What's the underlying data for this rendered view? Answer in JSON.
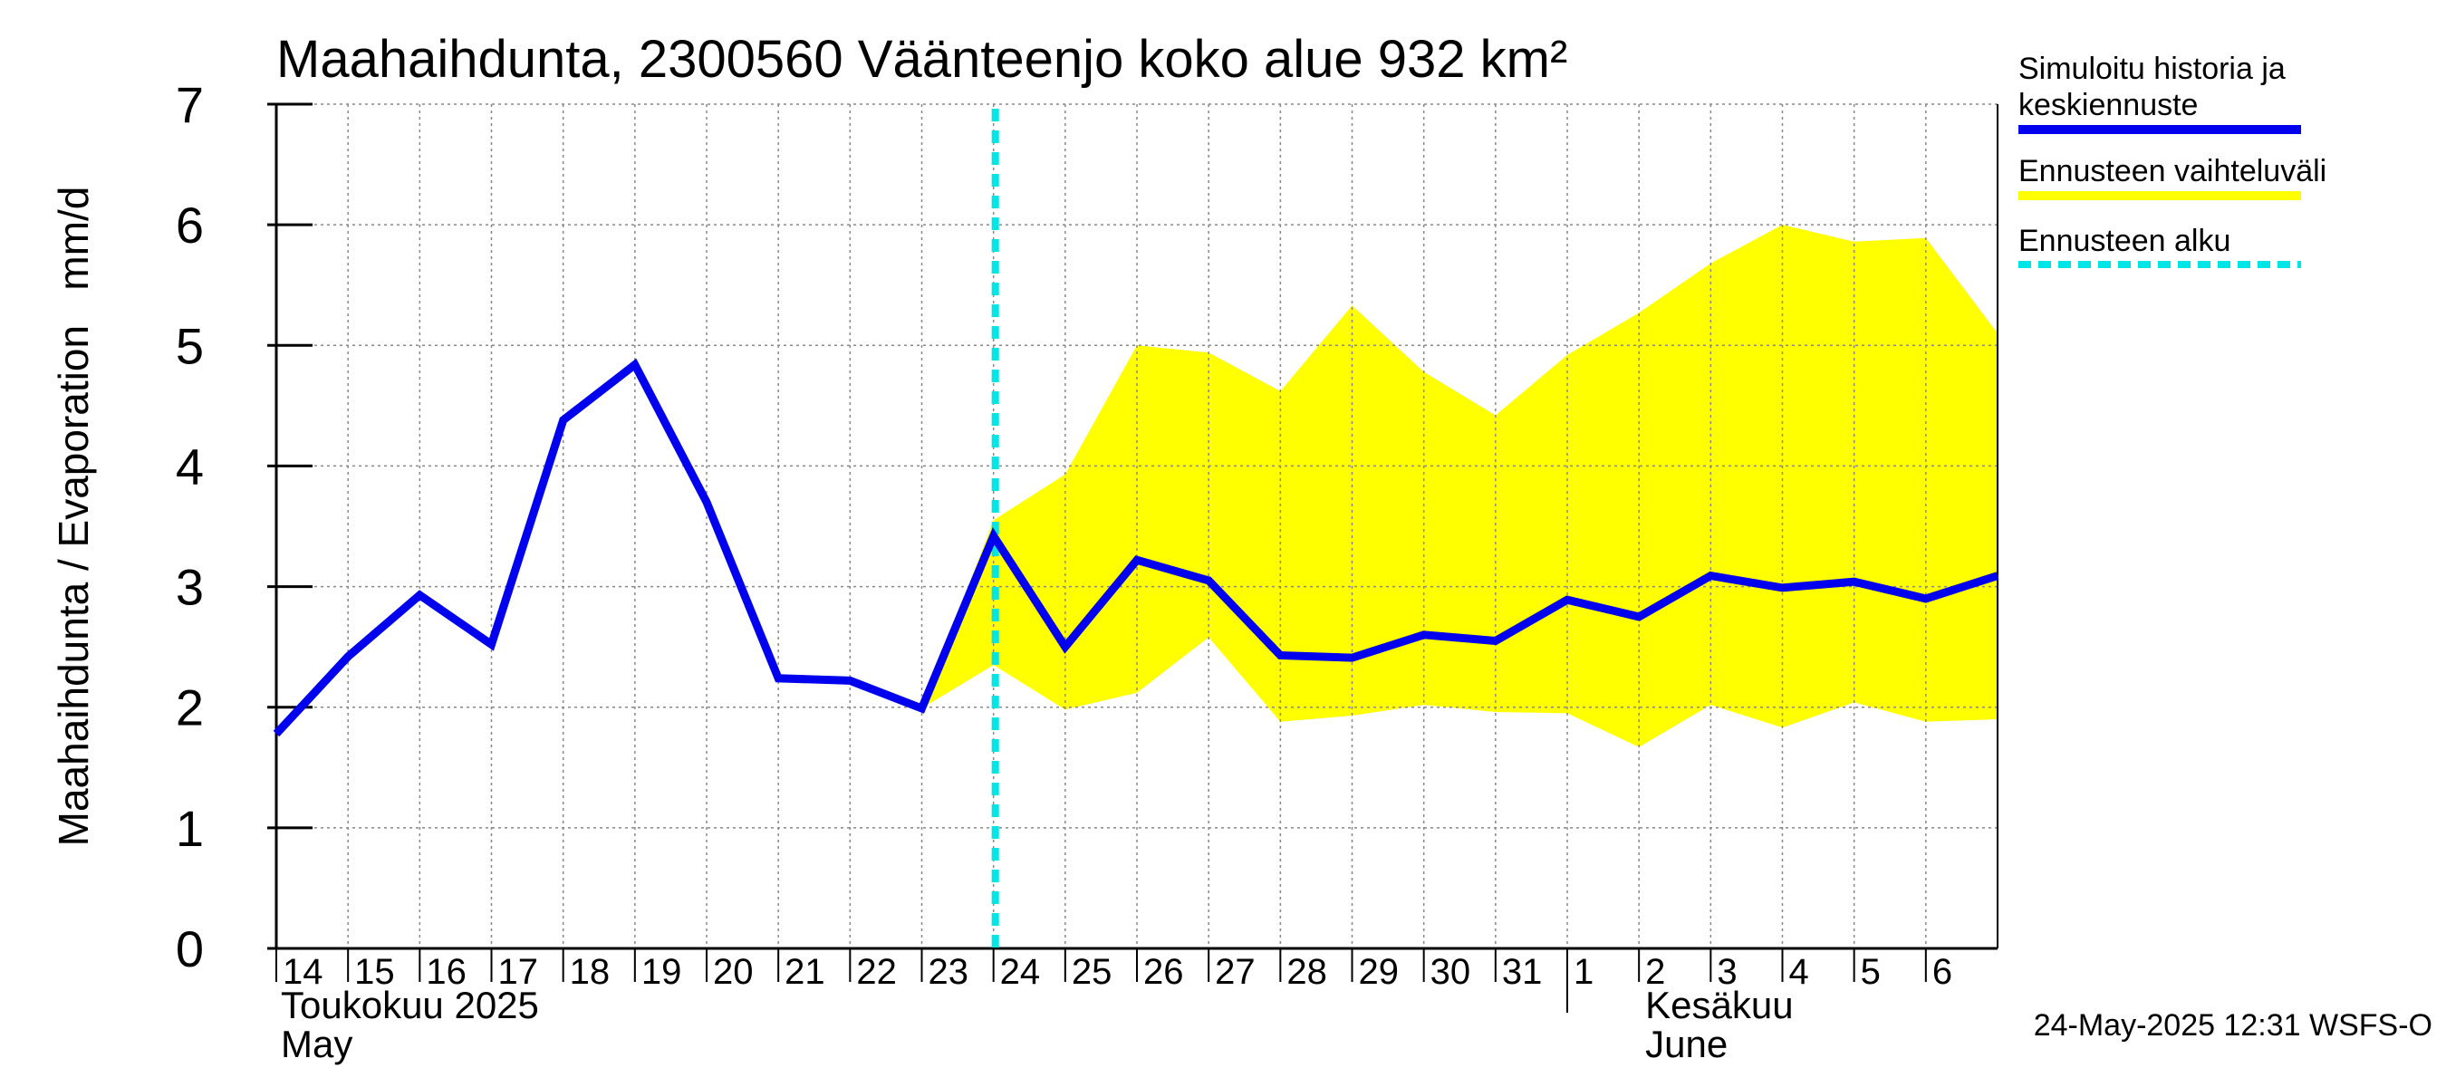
{
  "chart_data": {
    "type": "line",
    "title": "Maahaihdunta, 2300560 Väänteenjo koko alue 932 km²",
    "ylabel": "Maahaihdunta / Evaporation   mm/d",
    "ylim": [
      0,
      7
    ],
    "yticks": [
      "0",
      "1",
      "2",
      "3",
      "4",
      "5",
      "6",
      "7"
    ],
    "grid": true,
    "x": [
      "2025-05-14",
      "2025-05-15",
      "2025-05-16",
      "2025-05-17",
      "2025-05-18",
      "2025-05-19",
      "2025-05-20",
      "2025-05-21",
      "2025-05-22",
      "2025-05-23",
      "2025-05-24",
      "2025-05-25",
      "2025-05-26",
      "2025-05-27",
      "2025-05-28",
      "2025-05-29",
      "2025-05-30",
      "2025-05-31",
      "2025-06-01",
      "2025-06-02",
      "2025-06-03",
      "2025-06-04",
      "2025-06-05",
      "2025-06-06",
      "2025-06-07"
    ],
    "xtick_labels": [
      "14",
      "15",
      "16",
      "17",
      "18",
      "19",
      "20",
      "21",
      "22",
      "23",
      "24",
      "25",
      "26",
      "27",
      "28",
      "29",
      "30",
      "31",
      "1",
      "2",
      "3",
      "4",
      "5",
      "6"
    ],
    "month_labels": [
      {
        "line1": "Toukokuu  2025",
        "line2": "May"
      },
      {
        "line1": "Kesäkuu",
        "line2": "June"
      }
    ],
    "forecast_start": "2025-05-24",
    "series": [
      {
        "name": "Simuloitu historia ja keskiennuste",
        "color": "#0000ee",
        "values": [
          1.78,
          2.42,
          2.93,
          2.52,
          4.38,
          4.84,
          3.7,
          2.24,
          2.22,
          1.99,
          3.42,
          2.5,
          3.22,
          3.05,
          2.43,
          2.41,
          2.6,
          2.55,
          2.89,
          2.75,
          3.09,
          2.99,
          3.04,
          2.9,
          3.09
        ]
      },
      {
        "name": "Ennusteen vaihteluväli",
        "color": "#ffff00",
        "type": "band",
        "x_start": "2025-05-23",
        "lower": [
          1.99,
          2.35,
          1.98,
          2.12,
          2.58,
          1.88,
          1.93,
          2.02,
          1.96,
          1.95,
          1.67,
          2.02,
          1.83,
          2.04,
          1.88,
          1.9
        ],
        "upper": [
          1.99,
          3.55,
          3.93,
          5.0,
          4.94,
          4.62,
          5.33,
          4.78,
          4.42,
          4.92,
          5.27,
          5.68,
          6.0,
          5.86,
          5.89,
          5.1
        ]
      },
      {
        "name": "Ennusteen alku",
        "color": "#00e5e5",
        "type": "vline"
      }
    ],
    "legend": {
      "placement": "right",
      "entries": [
        {
          "line1": "Simuloitu historia ja",
          "line2": "keskiennuste",
          "color": "#0000ee",
          "style": "solid"
        },
        {
          "line1": "Ennusteen vaihteluväli",
          "line2": "",
          "color": "#ffff00",
          "style": "solid"
        },
        {
          "line1": "Ennusteen alku",
          "line2": "",
          "color": "#00e5e5",
          "style": "dashed"
        }
      ]
    },
    "footer": "24-May-2025 12:31 WSFS-O"
  }
}
